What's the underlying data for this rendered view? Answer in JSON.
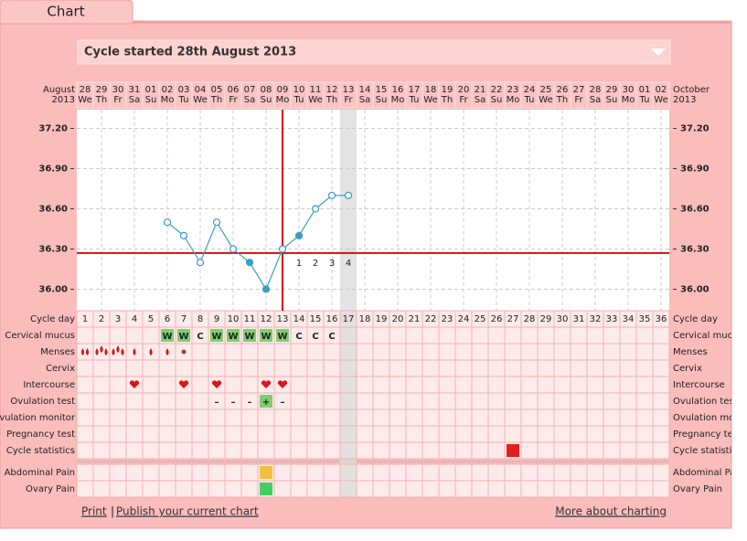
{
  "tab": "Chart",
  "cycle_select": "Cycle started 28th August 2013",
  "header": {
    "left_month": "August",
    "left_year": "2013",
    "right_month": "October",
    "right_year": "2013",
    "dates": [
      "28",
      "29",
      "30",
      "31",
      "01",
      "02",
      "03",
      "04",
      "05",
      "06",
      "07",
      "08",
      "09",
      "10",
      "11",
      "12",
      "13",
      "14",
      "15",
      "16",
      "17",
      "18",
      "19",
      "20",
      "21",
      "22",
      "23",
      "24",
      "25",
      "26",
      "27",
      "28",
      "29",
      "30",
      "01",
      "02"
    ],
    "weekdays": [
      "We",
      "Th",
      "Fr",
      "Sa",
      "Su",
      "Mo",
      "Tu",
      "We",
      "Th",
      "Fr",
      "Sa",
      "Su",
      "Mo",
      "Tu",
      "We",
      "Th",
      "Fr",
      "Sa",
      "Su",
      "Mo",
      "Tu",
      "We",
      "Th",
      "Fr",
      "Sa",
      "Su",
      "Mo",
      "Tu",
      "We",
      "Th",
      "Fr",
      "Sa",
      "Su",
      "Mo",
      "Tu",
      "We"
    ]
  },
  "chart_data": {
    "type": "line",
    "x": [
      6,
      7,
      8,
      9,
      10,
      11,
      12,
      13,
      14,
      15,
      16,
      17
    ],
    "values": [
      36.5,
      36.4,
      36.2,
      36.5,
      36.3,
      36.2,
      36.0,
      36.3,
      36.4,
      36.6,
      36.7,
      36.7
    ],
    "marker_filled": [
      false,
      false,
      false,
      false,
      false,
      true,
      true,
      false,
      true,
      false,
      false,
      false
    ],
    "color": "#3a9ec8",
    "xlim": [
      0.5,
      36.5
    ],
    "xticks": [
      1,
      2,
      3,
      4,
      5,
      6,
      7,
      8,
      9,
      10,
      11,
      12,
      13,
      14,
      15,
      16,
      17,
      18,
      19,
      20,
      21,
      22,
      23,
      24,
      25,
      26,
      27,
      28,
      29,
      30,
      31,
      32,
      33,
      34,
      35,
      36
    ],
    "xlabel": "Cycle day",
    "ylim": [
      35.84,
      37.34
    ],
    "yticks": [
      {
        "value": 36.0,
        "label": "36.00"
      },
      {
        "value": 36.3,
        "label": "36.30"
      },
      {
        "value": 36.6,
        "label": "36.60"
      },
      {
        "value": 36.9,
        "label": "36.90"
      },
      {
        "value": 37.2,
        "label": "37.20"
      }
    ],
    "grid": true,
    "coverline": 36.27,
    "coverline_color": "#cc1111",
    "ovulation_day": 13,
    "today": 17,
    "post_ovulation": {
      "x": [
        14,
        15,
        16,
        17
      ],
      "labels": [
        1,
        2,
        3,
        4
      ]
    }
  },
  "rows": [
    {
      "label": "Cervical mucus",
      "entries": [
        {
          "day": 6,
          "text": "W",
          "bg": "#7dcf6f"
        },
        {
          "day": 7,
          "text": "W",
          "bg": "#7dcf6f"
        },
        {
          "day": 8,
          "text": "C"
        },
        {
          "day": 9,
          "text": "W",
          "bg": "#7dcf6f"
        },
        {
          "day": 10,
          "text": "W",
          "bg": "#7dcf6f"
        },
        {
          "day": 11,
          "text": "W",
          "bg": "#7dcf6f"
        },
        {
          "day": 12,
          "text": "W",
          "bg": "#7dcf6f"
        },
        {
          "day": 13,
          "text": "W",
          "bg": "#7dcf6f"
        },
        {
          "day": 14,
          "text": "C"
        },
        {
          "day": 15,
          "text": "C"
        },
        {
          "day": 16,
          "text": "C"
        }
      ]
    },
    {
      "label": "Menses",
      "entries": [
        {
          "day": 1,
          "icon": "drop",
          "count": 2
        },
        {
          "day": 2,
          "icon": "drop",
          "count": 3
        },
        {
          "day": 3,
          "icon": "drop",
          "count": 3
        },
        {
          "day": 4,
          "icon": "drop",
          "count": 1
        },
        {
          "day": 5,
          "icon": "drop",
          "count": 1
        },
        {
          "day": 6,
          "icon": "drop",
          "count": 1
        },
        {
          "day": 7,
          "icon": "spot"
        }
      ]
    },
    {
      "label": "Cervix",
      "entries": []
    },
    {
      "label": "Intercourse",
      "entries": [
        {
          "day": 4,
          "icon": "heart"
        },
        {
          "day": 7,
          "icon": "heart"
        },
        {
          "day": 9,
          "icon": "heart"
        },
        {
          "day": 12,
          "icon": "heart"
        },
        {
          "day": 13,
          "icon": "heart"
        }
      ]
    },
    {
      "label": "Ovulation test",
      "entries": [
        {
          "day": 9,
          "text": "–"
        },
        {
          "day": 10,
          "text": "–"
        },
        {
          "day": 11,
          "text": "–"
        },
        {
          "day": 12,
          "text": "+",
          "bg": "#7dcf6f"
        },
        {
          "day": 13,
          "text": "–"
        }
      ]
    },
    {
      "label": "Ovulation monitor",
      "entries": []
    },
    {
      "label": "Pregnancy test",
      "entries": []
    },
    {
      "label": "Cycle statistics",
      "entries": [
        {
          "day": 27,
          "bg": "#e02020"
        }
      ]
    }
  ],
  "extra_rows": [
    {
      "label": "Abdominal Pain",
      "entries": [
        {
          "day": 12,
          "bg": "#f0c040"
        }
      ]
    },
    {
      "label": "Ovary Pain",
      "entries": [
        {
          "day": 12,
          "bg": "#44cc66"
        }
      ]
    }
  ],
  "footer": {
    "print": "Print",
    "separator": "|",
    "publish": "Publish your current chart",
    "more": "More about charting"
  }
}
